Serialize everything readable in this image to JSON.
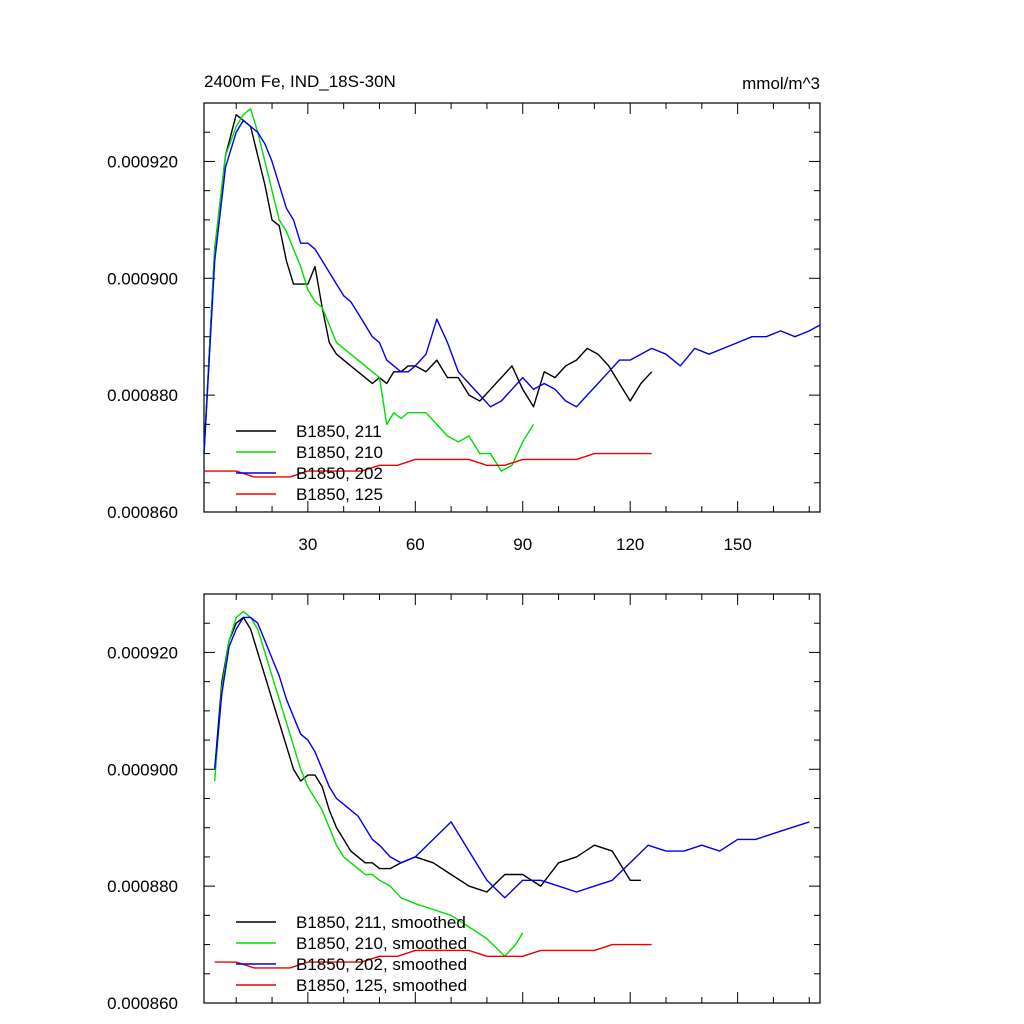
{
  "chart_data": [
    {
      "type": "line",
      "title": "2400m Fe, IND_18S-30N",
      "units": "mmol/m^3",
      "xlim": [
        1,
        173
      ],
      "ylim": [
        0.00086,
        0.00093
      ],
      "xticks": [
        30,
        60,
        90,
        120,
        150
      ],
      "xtick_labels": [
        "30",
        "60",
        "90",
        "120",
        "150"
      ],
      "yticks": [
        0.00086,
        0.00088,
        0.0009,
        0.00092
      ],
      "ytick_labels": [
        "0.000860",
        "0.000880",
        "0.000900",
        "0.000920"
      ],
      "legend_position": "bottom-left",
      "series": [
        {
          "name": "B1850, 211",
          "color": "#000000",
          "x": [
            1,
            4,
            7,
            10,
            12,
            14,
            16,
            18,
            20,
            22,
            24,
            26,
            28,
            30,
            32,
            34,
            36,
            38,
            40,
            42,
            44,
            46,
            48,
            50,
            52,
            54,
            56,
            58,
            60,
            63,
            66,
            69,
            72,
            75,
            78,
            81,
            84,
            87,
            90,
            93,
            96,
            99,
            102,
            105,
            108,
            111,
            114,
            117,
            120,
            123,
            126
          ],
          "y": [
            0.00087,
            0.000905,
            0.000921,
            0.000928,
            0.000927,
            0.000926,
            0.000921,
            0.000916,
            0.00091,
            0.000909,
            0.000903,
            0.000899,
            0.000899,
            0.000899,
            0.000902,
            0.000895,
            0.000889,
            0.000887,
            0.000886,
            0.000885,
            0.000884,
            0.000883,
            0.000882,
            0.000883,
            0.000882,
            0.000884,
            0.000884,
            0.000885,
            0.000885,
            0.000884,
            0.000886,
            0.000883,
            0.000883,
            0.00088,
            0.000879,
            0.000881,
            0.000883,
            0.000885,
            0.000881,
            0.000878,
            0.000884,
            0.000883,
            0.000885,
            0.000886,
            0.000888,
            0.000887,
            0.000885,
            0.000882,
            0.000879,
            0.000882,
            0.000884
          ]
        },
        {
          "name": "B1850, 210",
          "color": "#00dd00",
          "x": [
            1,
            4,
            7,
            10,
            12,
            14,
            16,
            18,
            20,
            22,
            24,
            26,
            28,
            30,
            32,
            34,
            36,
            38,
            40,
            42,
            44,
            46,
            48,
            50,
            52,
            54,
            56,
            58,
            60,
            63,
            66,
            69,
            72,
            75,
            78,
            81,
            84,
            87,
            90,
            93
          ],
          "y": [
            0.00087,
            0.000905,
            0.000921,
            0.000926,
            0.000928,
            0.000929,
            0.000925,
            0.00092,
            0.000915,
            0.00091,
            0.000908,
            0.000905,
            0.000902,
            0.000898,
            0.000896,
            0.000895,
            0.000892,
            0.000889,
            0.000888,
            0.000887,
            0.000886,
            0.000885,
            0.000884,
            0.000883,
            0.000875,
            0.000877,
            0.000876,
            0.000877,
            0.000877,
            0.000877,
            0.000875,
            0.000873,
            0.000872,
            0.000873,
            0.00087,
            0.00087,
            0.000867,
            0.000868,
            0.000872,
            0.000875
          ]
        },
        {
          "name": "B1850, 202",
          "color": "#0000ee",
          "x": [
            1,
            4,
            7,
            10,
            12,
            14,
            16,
            18,
            20,
            22,
            24,
            26,
            28,
            30,
            32,
            34,
            36,
            38,
            40,
            42,
            44,
            46,
            48,
            50,
            52,
            54,
            56,
            58,
            60,
            63,
            66,
            69,
            72,
            75,
            78,
            81,
            84,
            87,
            90,
            93,
            96,
            99,
            102,
            105,
            108,
            111,
            114,
            117,
            120,
            123,
            126,
            130,
            134,
            138,
            142,
            146,
            150,
            154,
            158,
            162,
            166,
            170,
            173
          ],
          "y": [
            0.00087,
            0.000903,
            0.000919,
            0.000925,
            0.000927,
            0.000926,
            0.000925,
            0.000923,
            0.00092,
            0.000916,
            0.000912,
            0.00091,
            0.000906,
            0.000906,
            0.000905,
            0.000903,
            0.000901,
            0.000899,
            0.000897,
            0.000896,
            0.000894,
            0.000892,
            0.00089,
            0.000889,
            0.000886,
            0.000885,
            0.000884,
            0.000884,
            0.000885,
            0.000887,
            0.000893,
            0.000889,
            0.000884,
            0.000882,
            0.00088,
            0.000878,
            0.000879,
            0.000881,
            0.000883,
            0.000881,
            0.000882,
            0.000881,
            0.000879,
            0.000878,
            0.00088,
            0.000882,
            0.000884,
            0.000886,
            0.000886,
            0.000887,
            0.000888,
            0.000887,
            0.000885,
            0.000888,
            0.000887,
            0.000888,
            0.000889,
            0.00089,
            0.00089,
            0.000891,
            0.00089,
            0.000891,
            0.000892
          ]
        },
        {
          "name": "B1850, 125",
          "color": "#ee0000",
          "x": [
            1,
            5,
            10,
            15,
            20,
            25,
            30,
            35,
            40,
            45,
            50,
            55,
            60,
            65,
            70,
            75,
            80,
            85,
            90,
            95,
            100,
            105,
            110,
            115,
            120,
            123,
            126
          ],
          "y": [
            0.000867,
            0.000867,
            0.000867,
            0.000866,
            0.000866,
            0.000866,
            0.000867,
            0.000867,
            0.000867,
            0.000867,
            0.000868,
            0.000868,
            0.000869,
            0.000869,
            0.000869,
            0.000869,
            0.000868,
            0.000868,
            0.000869,
            0.000869,
            0.000869,
            0.000869,
            0.00087,
            0.00087,
            0.00087,
            0.00087,
            0.00087
          ]
        }
      ]
    },
    {
      "type": "line",
      "title": "",
      "xlim": [
        1,
        173
      ],
      "ylim": [
        0.00086,
        0.00093
      ],
      "xticks": [
        30,
        60,
        90,
        120,
        150
      ],
      "yticks": [
        0.00086,
        0.00088,
        0.0009,
        0.00092
      ],
      "ytick_labels": [
        "0.000860",
        "0.000880",
        "0.000900",
        "0.000920"
      ],
      "legend_position": "bottom-left",
      "series": [
        {
          "name": "B1850, 211, smoothed",
          "color": "#000000",
          "x": [
            4,
            6,
            8,
            10,
            12,
            14,
            16,
            18,
            20,
            22,
            24,
            26,
            28,
            30,
            32,
            34,
            36,
            38,
            40,
            42,
            44,
            46,
            48,
            50,
            53,
            56,
            60,
            65,
            70,
            75,
            80,
            85,
            90,
            95,
            100,
            105,
            110,
            115,
            120,
            123
          ],
          "y": [
            0.0009,
            0.000915,
            0.000922,
            0.000925,
            0.000926,
            0.000924,
            0.00092,
            0.000916,
            0.000912,
            0.000908,
            0.000904,
            0.0009,
            0.000898,
            0.000899,
            0.000899,
            0.000897,
            0.000893,
            0.00089,
            0.000888,
            0.000886,
            0.000885,
            0.000884,
            0.000884,
            0.000883,
            0.000883,
            0.000884,
            0.000885,
            0.000884,
            0.000882,
            0.00088,
            0.000879,
            0.000882,
            0.000882,
            0.00088,
            0.000884,
            0.000885,
            0.000887,
            0.000886,
            0.000881,
            0.000881
          ]
        },
        {
          "name": "B1850, 210, smoothed",
          "color": "#00dd00",
          "x": [
            4,
            6,
            8,
            10,
            12,
            14,
            16,
            18,
            20,
            22,
            24,
            26,
            28,
            30,
            32,
            34,
            36,
            38,
            40,
            42,
            44,
            46,
            48,
            50,
            53,
            56,
            60,
            65,
            70,
            75,
            80,
            85,
            88,
            90
          ],
          "y": [
            0.000898,
            0.000914,
            0.000922,
            0.000926,
            0.000927,
            0.000926,
            0.000924,
            0.00092,
            0.000916,
            0.000912,
            0.000908,
            0.000904,
            0.0009,
            0.000897,
            0.000895,
            0.000893,
            0.00089,
            0.000887,
            0.000885,
            0.000884,
            0.000883,
            0.000882,
            0.000882,
            0.000881,
            0.00088,
            0.000878,
            0.000877,
            0.000876,
            0.000875,
            0.000873,
            0.000871,
            0.000868,
            0.00087,
            0.000872
          ]
        },
        {
          "name": "B1850, 202, smoothed",
          "color": "#0000ee",
          "x": [
            4,
            6,
            8,
            10,
            12,
            14,
            16,
            18,
            20,
            22,
            24,
            26,
            28,
            30,
            32,
            34,
            36,
            38,
            40,
            42,
            44,
            46,
            48,
            50,
            53,
            56,
            60,
            65,
            70,
            75,
            80,
            85,
            90,
            95,
            100,
            105,
            110,
            115,
            120,
            125,
            130,
            135,
            140,
            145,
            150,
            155,
            160,
            165,
            170
          ],
          "y": [
            0.0009,
            0.000913,
            0.000921,
            0.000924,
            0.000926,
            0.000926,
            0.000925,
            0.000922,
            0.000919,
            0.000916,
            0.000912,
            0.000909,
            0.000906,
            0.000905,
            0.000903,
            0.0009,
            0.000897,
            0.000895,
            0.000894,
            0.000893,
            0.000892,
            0.00089,
            0.000888,
            0.000887,
            0.000885,
            0.000884,
            0.000885,
            0.000888,
            0.000891,
            0.000886,
            0.000881,
            0.000878,
            0.000881,
            0.000881,
            0.00088,
            0.000879,
            0.00088,
            0.000881,
            0.000884,
            0.000887,
            0.000886,
            0.000886,
            0.000887,
            0.000886,
            0.000888,
            0.000888,
            0.000889,
            0.00089,
            0.000891
          ]
        },
        {
          "name": "B1850, 125, smoothed",
          "color": "#ee0000",
          "x": [
            4,
            10,
            15,
            20,
            25,
            30,
            35,
            40,
            45,
            50,
            55,
            60,
            65,
            70,
            75,
            80,
            85,
            90,
            95,
            100,
            105,
            110,
            115,
            120,
            126
          ],
          "y": [
            0.000867,
            0.000867,
            0.000866,
            0.000866,
            0.000866,
            0.000867,
            0.000867,
            0.000867,
            0.000867,
            0.000868,
            0.000868,
            0.000869,
            0.000869,
            0.000869,
            0.000869,
            0.000868,
            0.000868,
            0.000868,
            0.000869,
            0.000869,
            0.000869,
            0.000869,
            0.00087,
            0.00087,
            0.00087
          ]
        }
      ]
    }
  ]
}
